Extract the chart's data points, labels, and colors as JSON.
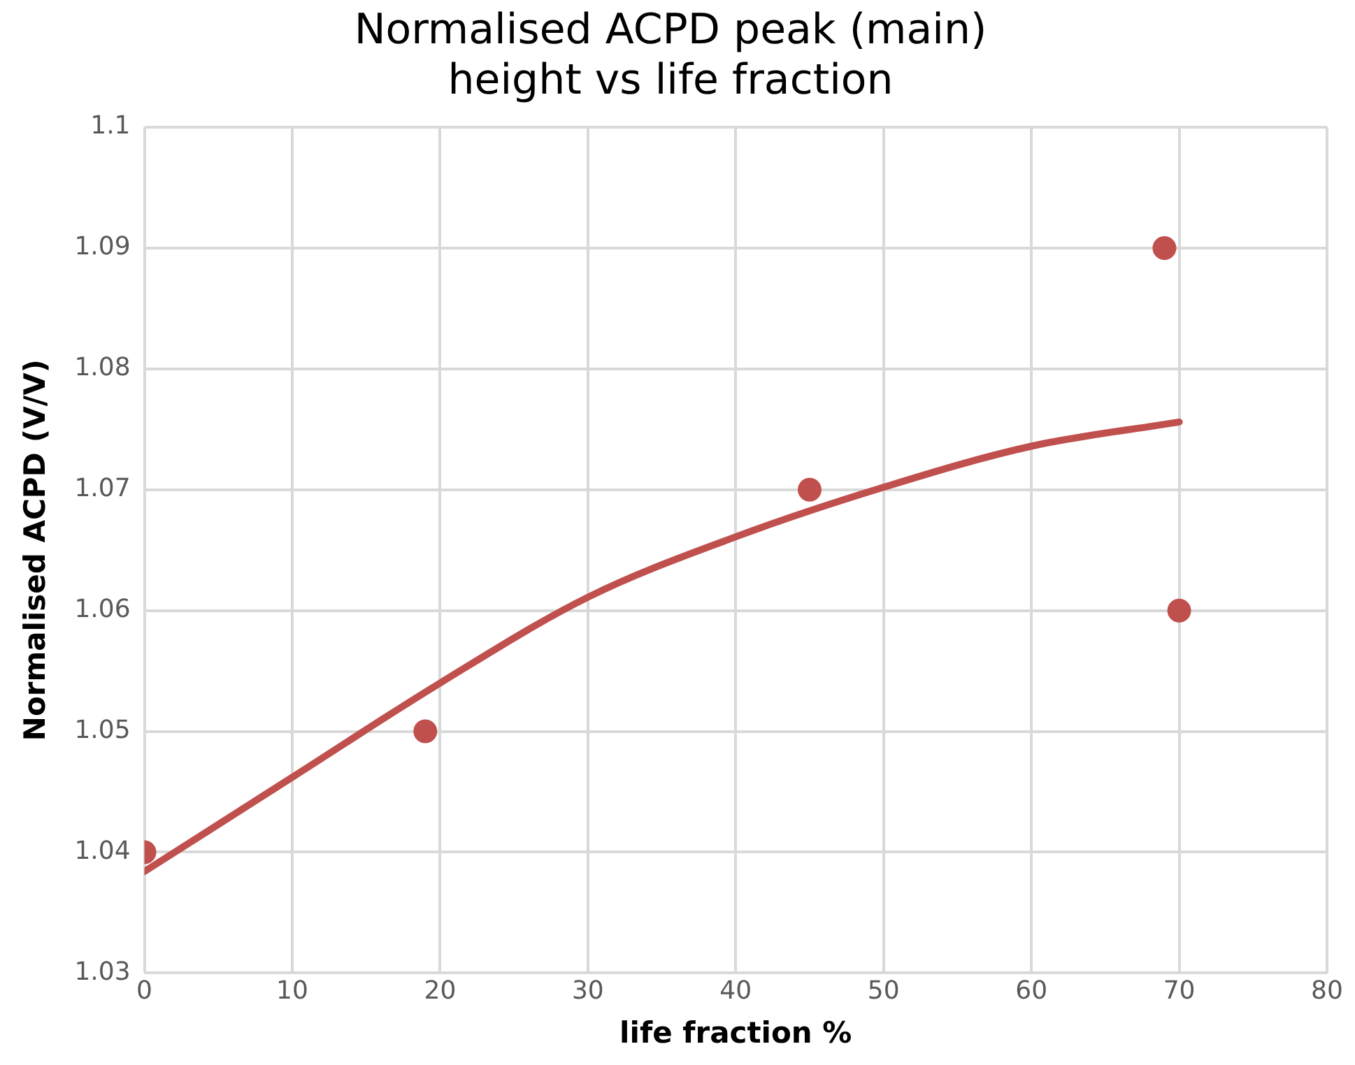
{
  "chart_data": {
    "type": "scatter",
    "title": "Normalised ACPD peak (main)\nheight vs life fraction",
    "xlabel": "life fraction %",
    "ylabel": "Normalised ACPD (V/V)",
    "xlim": [
      0,
      80
    ],
    "xticks": [
      0,
      10,
      20,
      30,
      40,
      50,
      60,
      70,
      80
    ],
    "ylim": [
      1.03,
      1.1
    ],
    "yticks": [
      {
        "value": 1.03,
        "label": "1.03"
      },
      {
        "value": 1.04,
        "label": "1.04"
      },
      {
        "value": 1.05,
        "label": "1.05"
      },
      {
        "value": 1.06,
        "label": "1.06"
      },
      {
        "value": 1.07,
        "label": "1.07"
      },
      {
        "value": 1.08,
        "label": "1.08"
      },
      {
        "value": 1.09,
        "label": "1.09"
      },
      {
        "value": 1.1,
        "label": "1.1"
      }
    ],
    "grid": true,
    "marker": "circle",
    "series": [
      {
        "type": "scatter",
        "color": "#c0504d",
        "x": [
          0,
          19,
          45,
          69,
          70
        ],
        "values": [
          1.04,
          1.05,
          1.07,
          1.09,
          1.06
        ]
      },
      {
        "type": "line",
        "color": "#c0504d",
        "line_style": "solid",
        "marker": "none",
        "x": [
          0,
          10,
          20,
          30,
          40,
          50,
          60,
          70
        ],
        "values": [
          1.0384,
          1.0462,
          1.054,
          1.0611,
          1.0661,
          1.0702,
          1.0736,
          1.0756
        ]
      }
    ]
  }
}
